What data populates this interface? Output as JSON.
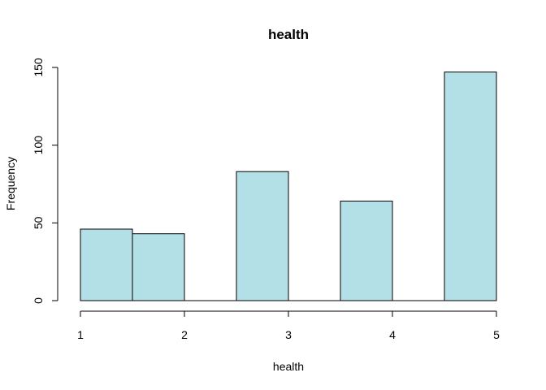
{
  "chart_data": {
    "type": "bar",
    "title": "health",
    "xlabel": "health",
    "ylabel": "Frequency",
    "x_ticks": [
      1,
      2,
      3,
      4,
      5
    ],
    "y_ticks": [
      0,
      50,
      100,
      150
    ],
    "xlim": [
      1,
      5
    ],
    "ylim": [
      0,
      150
    ],
    "bar_color": "#b3e0e6",
    "bins": [
      {
        "start": 1.0,
        "end": 1.5,
        "value": 46
      },
      {
        "start": 1.5,
        "end": 2.0,
        "value": 43
      },
      {
        "start": 2.0,
        "end": 2.5,
        "value": 0
      },
      {
        "start": 2.5,
        "end": 3.0,
        "value": 83
      },
      {
        "start": 3.0,
        "end": 3.5,
        "value": 0
      },
      {
        "start": 3.5,
        "end": 4.0,
        "value": 64
      },
      {
        "start": 4.0,
        "end": 4.5,
        "value": 0
      },
      {
        "start": 4.5,
        "end": 5.0,
        "value": 147
      }
    ],
    "grid": false,
    "legend": "none"
  }
}
